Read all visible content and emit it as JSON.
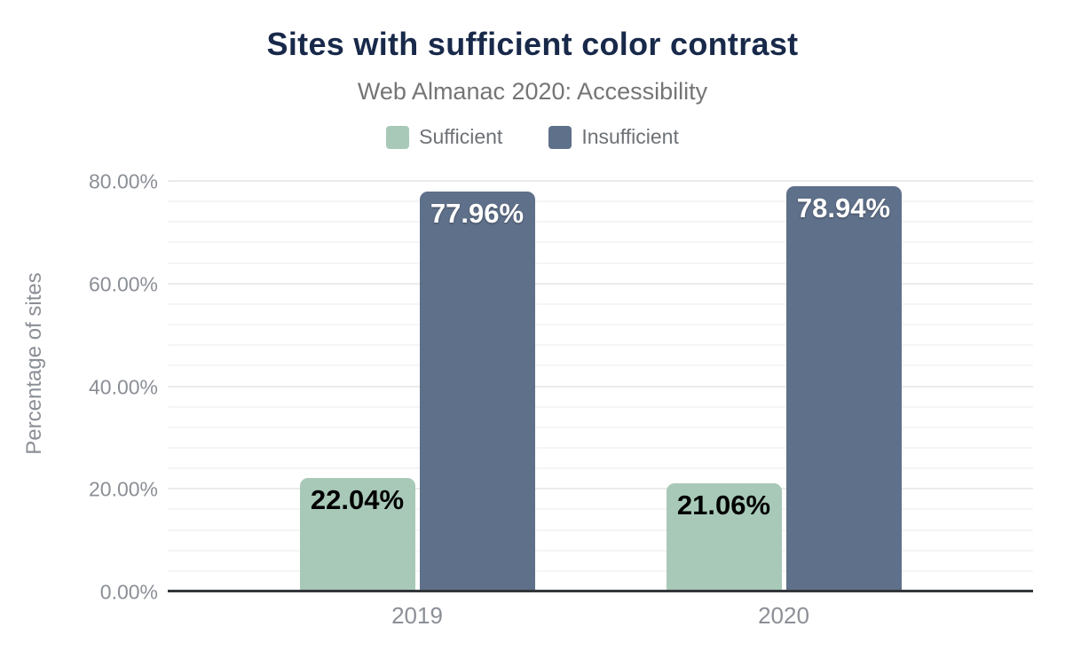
{
  "chart_data": {
    "type": "bar",
    "title": "Sites with sufficient color contrast",
    "subtitle": "Web Almanac 2020: Accessibility",
    "categories": [
      "2019",
      "2020"
    ],
    "series": [
      {
        "name": "Sufficient",
        "values": [
          22.04,
          21.06
        ],
        "data_labels": [
          "22.04%",
          "21.06%"
        ],
        "color": "#a8c9b8",
        "data_label_style": "dark"
      },
      {
        "name": "Insufficient",
        "values": [
          77.96,
          78.94
        ],
        "data_labels": [
          "77.96%",
          "78.94%"
        ],
        "color": "#5f708a",
        "data_label_style": "light"
      }
    ],
    "xlabel": "",
    "ylabel": "Percentage of sites",
    "ylim": [
      0,
      80
    ],
    "ytick_values": [
      0,
      20,
      40,
      60,
      80
    ],
    "ytick_labels": [
      "0.00%",
      "20.00%",
      "40.00%",
      "60.00%",
      "80.00%"
    ],
    "grid": {
      "orientation": "horizontal",
      "major_interval": 20,
      "minor_interval": 4
    },
    "legend_position": "top"
  },
  "colors": {
    "background": "#ffffff",
    "title_text": "#18294a",
    "subtitle_text": "#757575",
    "legend_text": "#6e7276",
    "axis_text": "#8b8f96",
    "axis_line": "#33363b",
    "grid_major": "#ebebeb",
    "grid_minor": "#f5f5f5"
  }
}
